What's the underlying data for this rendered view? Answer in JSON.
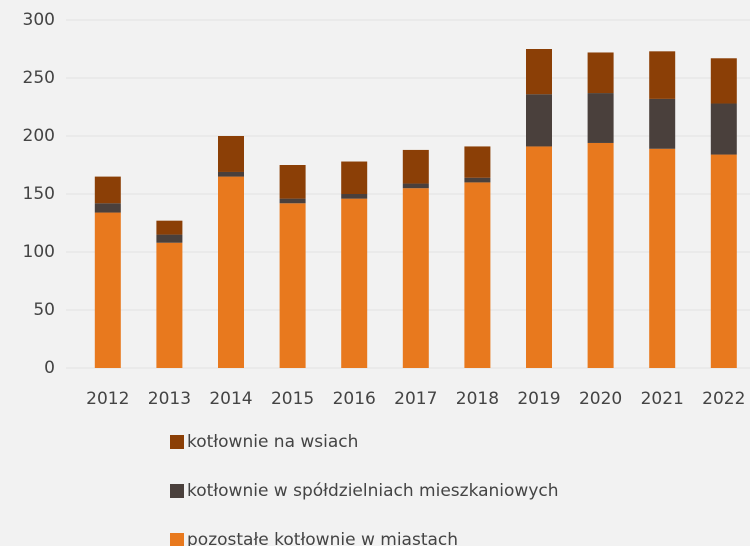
{
  "chart_data": {
    "type": "stacked_bar",
    "categories": [
      "2012",
      "2013",
      "2014",
      "2015",
      "2016",
      "2017",
      "2018",
      "2019",
      "2020",
      "2021",
      "2022"
    ],
    "series": [
      {
        "name": "pozostałe kotłownie w miastach",
        "color": "#e8791e",
        "values": [
          134,
          108,
          165,
          142,
          146,
          155,
          160,
          191,
          194,
          189,
          184
        ]
      },
      {
        "name": "kotłownie w spółdzielniach mieszkaniowych",
        "color": "#4a403c",
        "values": [
          8,
          7,
          4,
          4,
          4,
          4,
          4,
          45,
          43,
          43,
          44
        ]
      },
      {
        "name": "kotłownie na wsiach",
        "color": "#8b3f06",
        "values": [
          23,
          12,
          31,
          29,
          28,
          29,
          27,
          39,
          35,
          41,
          39
        ]
      }
    ],
    "ylim": [
      0,
      300
    ],
    "yticks": [
      0,
      50,
      100,
      150,
      200,
      250,
      300
    ],
    "grid": true
  }
}
